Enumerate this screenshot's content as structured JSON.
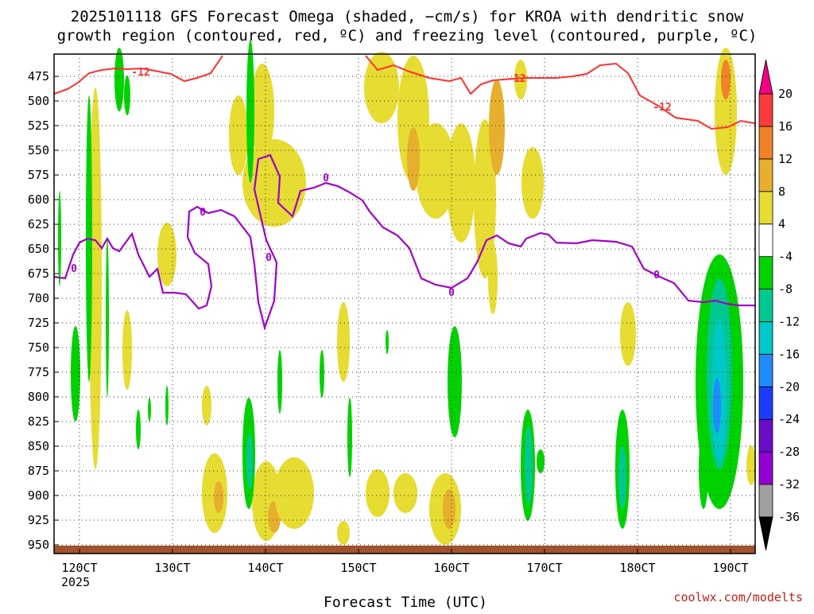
{
  "chart_data": {
    "type": "heatmap",
    "title_lines": [
      "2025101118 GFS Forecast Omega (shaded, −cm/s) for KROA with dendritic snow",
      "growth region (contoured, red, ºC) and freezing level (contoured, purple, ºC)"
    ],
    "xlabel": "Forecast Time (UTC)",
    "x_ticks": [
      "120CT",
      "130CT",
      "140CT",
      "150CT",
      "160CT",
      "170CT",
      "180CT",
      "190CT"
    ],
    "x_year_label": "2025",
    "y_ticks": [
      475,
      500,
      525,
      550,
      575,
      600,
      625,
      650,
      675,
      700,
      725,
      750,
      775,
      800,
      825,
      850,
      875,
      900,
      925,
      950
    ],
    "colorbar": {
      "levels": [
        -36,
        -32,
        -28,
        -24,
        -20,
        -16,
        -12,
        -8,
        -4,
        4,
        8,
        12,
        16,
        20
      ],
      "colors": [
        "#000000",
        "#a0a0a0",
        "#9400d3",
        "#6a0dc9",
        "#1e3cff",
        "#1e8cff",
        "#00c8c8",
        "#00c890",
        "#00d200",
        "#ffffff",
        "#e6dc32",
        "#e6af2d",
        "#f08228",
        "#fa3c3c",
        "#f00082"
      ]
    },
    "contours": [
      {
        "color": "#ff3030",
        "label": "-12",
        "value": -12
      },
      {
        "color": "#a000c8",
        "label": "0",
        "value": 0
      }
    ],
    "credit": "coolwx.com/modelts"
  }
}
